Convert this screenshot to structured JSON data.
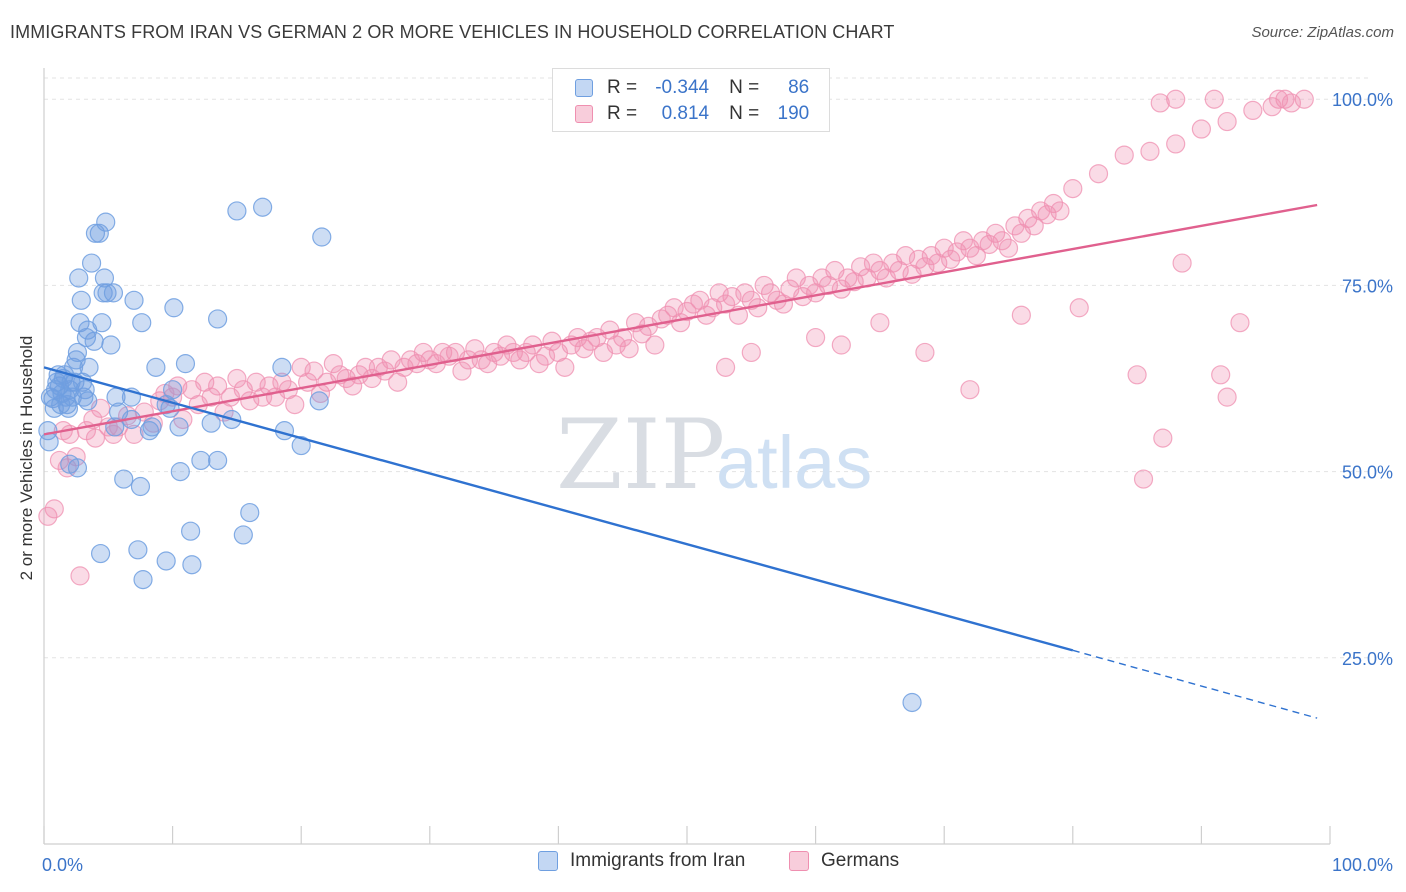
{
  "header": {
    "title": "IMMIGRANTS FROM IRAN VS GERMAN 2 OR MORE VEHICLES IN HOUSEHOLD CORRELATION CHART",
    "source": "Source: ZipAtlas.com"
  },
  "watermark": {
    "zip": "ZIP",
    "atlas": "atlas"
  },
  "legend": {
    "rows": [
      {
        "r_label": "R =",
        "r_value": "-0.344",
        "n_label": "N =",
        "n_value": "86"
      },
      {
        "r_label": "R =",
        "r_value": "0.814",
        "n_label": "N =",
        "n_value": "190"
      }
    ]
  },
  "chart_data": {
    "type": "scatter",
    "title": "IMMIGRANTS FROM IRAN VS GERMAN 2 OR MORE VEHICLES IN HOUSEHOLD CORRELATION CHART",
    "xlabel": "",
    "ylabel": "2 or more Vehicles in Household",
    "xlim": [
      0,
      100
    ],
    "ylim": [
      0,
      105
    ],
    "x_tick_labels": {
      "left": "0.0%",
      "right": "100.0%"
    },
    "y_ticks": [
      {
        "value": 25,
        "label": "25.0%"
      },
      {
        "value": 50,
        "label": "50.0%"
      },
      {
        "value": 75,
        "label": "75.0%"
      },
      {
        "value": 100,
        "label": "100.0%"
      }
    ],
    "grid": true,
    "legend_position": "top-center",
    "colors": {
      "iran": "#6f9fe0",
      "german": "#ef8fb0",
      "iran_line": "#2f72d0",
      "german_line": "#e0608e",
      "tick_label": "#3b74c9"
    },
    "series": [
      {
        "name": "Immigrants from Iran",
        "r": -0.344,
        "n": 86,
        "trend": {
          "x": [
            0,
            80
          ],
          "y": [
            64,
            26
          ]
        },
        "trend_dashed": {
          "x": [
            80,
            99
          ],
          "y": [
            26,
            16.9
          ]
        },
        "points": [
          [
            0.3,
            55.5
          ],
          [
            0.5,
            60
          ],
          [
            0.7,
            59.8
          ],
          [
            0.8,
            58.5
          ],
          [
            0.9,
            61
          ],
          [
            1.0,
            62
          ],
          [
            1.1,
            63
          ],
          [
            1.2,
            61.5
          ],
          [
            1.3,
            59
          ],
          [
            1.4,
            60.5
          ],
          [
            1.5,
            62.5
          ],
          [
            1.6,
            63
          ],
          [
            1.7,
            60
          ],
          [
            1.8,
            59
          ],
          [
            1.9,
            58.5
          ],
          [
            2.0,
            61
          ],
          [
            2.1,
            62
          ],
          [
            2.2,
            60
          ],
          [
            2.3,
            64
          ],
          [
            2.4,
            62
          ],
          [
            2.5,
            65
          ],
          [
            2.6,
            66
          ],
          [
            2.7,
            76
          ],
          [
            2.8,
            70
          ],
          [
            2.9,
            73
          ],
          [
            3.0,
            62
          ],
          [
            3.1,
            60
          ],
          [
            3.2,
            61
          ],
          [
            3.3,
            68
          ],
          [
            3.4,
            69
          ],
          [
            3.5,
            64
          ],
          [
            3.7,
            78
          ],
          [
            3.9,
            67.5
          ],
          [
            4.0,
            82
          ],
          [
            4.3,
            82
          ],
          [
            4.5,
            70
          ],
          [
            4.6,
            74
          ],
          [
            4.7,
            76
          ],
          [
            4.8,
            83.5
          ],
          [
            4.9,
            74
          ],
          [
            5.2,
            67
          ],
          [
            5.4,
            74
          ],
          [
            5.6,
            60
          ],
          [
            3.4,
            59.5
          ],
          [
            5.8,
            58
          ],
          [
            6.2,
            49
          ],
          [
            6.8,
            60
          ],
          [
            7.0,
            73
          ],
          [
            7.6,
            70
          ],
          [
            8.4,
            56
          ],
          [
            8.7,
            64
          ],
          [
            9.5,
            59
          ],
          [
            10.0,
            61
          ],
          [
            10.1,
            72
          ],
          [
            10.6,
            50
          ],
          [
            11.0,
            64.5
          ],
          [
            11.4,
            42
          ],
          [
            12.2,
            51.5
          ],
          [
            13.5,
            51.5
          ],
          [
            13.5,
            70.5
          ],
          [
            15.0,
            85
          ],
          [
            15.5,
            41.5
          ],
          [
            16.0,
            44.5
          ],
          [
            17.0,
            85.5
          ],
          [
            18.5,
            64
          ],
          [
            18.7,
            55.5
          ],
          [
            20.0,
            53.5
          ],
          [
            21.4,
            59.5
          ],
          [
            21.6,
            81.5
          ],
          [
            2.0,
            51
          ],
          [
            2.6,
            50.5
          ],
          [
            4.4,
            39
          ],
          [
            7.3,
            39.5
          ],
          [
            7.7,
            35.5
          ],
          [
            9.5,
            38
          ],
          [
            11.5,
            37.5
          ],
          [
            5.5,
            56
          ],
          [
            6.8,
            57
          ],
          [
            7.5,
            48
          ],
          [
            8.2,
            55.5
          ],
          [
            9.8,
            58.5
          ],
          [
            13.0,
            56.5
          ],
          [
            14.6,
            57
          ],
          [
            10.5,
            56
          ],
          [
            0.4,
            54
          ],
          [
            67.5,
            19
          ]
        ]
      },
      {
        "name": "Germans",
        "r": 0.814,
        "n": 190,
        "trend": {
          "x": [
            0,
            99
          ],
          "y": [
            55,
            85.8
          ]
        },
        "points": [
          [
            0.3,
            44
          ],
          [
            0.8,
            45
          ],
          [
            1.2,
            51.5
          ],
          [
            1.5,
            55.5
          ],
          [
            2.0,
            55
          ],
          [
            2.8,
            36
          ],
          [
            3.3,
            55.5
          ],
          [
            4.0,
            54.5
          ],
          [
            4.4,
            58.5
          ],
          [
            5.0,
            56
          ],
          [
            5.4,
            55
          ],
          [
            5.8,
            56
          ],
          [
            6.5,
            57.5
          ],
          [
            7.0,
            55
          ],
          [
            7.8,
            58
          ],
          [
            8.5,
            56.5
          ],
          [
            9.0,
            59.5
          ],
          [
            9.4,
            60.5
          ],
          [
            10.0,
            60
          ],
          [
            10.4,
            61.5
          ],
          [
            10.8,
            57
          ],
          [
            11.5,
            61
          ],
          [
            12.0,
            59
          ],
          [
            12.5,
            62
          ],
          [
            13.0,
            60
          ],
          [
            13.5,
            61.5
          ],
          [
            14.0,
            58
          ],
          [
            14.5,
            60
          ],
          [
            15.0,
            62.5
          ],
          [
            15.5,
            61
          ],
          [
            16.0,
            59.5
          ],
          [
            16.5,
            62
          ],
          [
            17.0,
            60
          ],
          [
            17.5,
            61.5
          ],
          [
            18.0,
            60
          ],
          [
            18.5,
            62
          ],
          [
            19.0,
            61
          ],
          [
            19.5,
            59
          ],
          [
            20.0,
            64
          ],
          [
            20.5,
            62
          ],
          [
            21.0,
            63.5
          ],
          [
            21.5,
            60.5
          ],
          [
            22.0,
            62
          ],
          [
            22.5,
            64.5
          ],
          [
            23.0,
            63
          ],
          [
            23.5,
            62.5
          ],
          [
            24.0,
            61.5
          ],
          [
            24.5,
            63
          ],
          [
            25.0,
            64
          ],
          [
            25.5,
            62.5
          ],
          [
            26.0,
            64
          ],
          [
            26.5,
            63.5
          ],
          [
            27.0,
            65
          ],
          [
            27.5,
            62
          ],
          [
            28.0,
            64
          ],
          [
            28.5,
            65
          ],
          [
            29.0,
            64.5
          ],
          [
            29.5,
            66
          ],
          [
            30.0,
            65
          ],
          [
            30.5,
            64.5
          ],
          [
            31.0,
            66
          ],
          [
            31.5,
            65.5
          ],
          [
            32.0,
            66
          ],
          [
            32.5,
            63.5
          ],
          [
            33.0,
            65
          ],
          [
            33.5,
            66.5
          ],
          [
            34.0,
            65
          ],
          [
            34.5,
            64.5
          ],
          [
            35.0,
            66
          ],
          [
            35.5,
            65.5
          ],
          [
            36.0,
            67
          ],
          [
            36.5,
            66
          ],
          [
            37.0,
            65
          ],
          [
            37.5,
            66
          ],
          [
            38.0,
            67
          ],
          [
            38.5,
            64.5
          ],
          [
            39.0,
            65.5
          ],
          [
            39.5,
            67.5
          ],
          [
            40.0,
            66
          ],
          [
            40.5,
            64
          ],
          [
            41.0,
            67
          ],
          [
            41.5,
            68
          ],
          [
            42.0,
            66.5
          ],
          [
            42.5,
            67.5
          ],
          [
            43.0,
            68
          ],
          [
            43.5,
            66
          ],
          [
            44.0,
            69
          ],
          [
            44.5,
            67
          ],
          [
            45.0,
            68
          ],
          [
            45.5,
            66.5
          ],
          [
            46.0,
            70
          ],
          [
            46.5,
            68.5
          ],
          [
            47.0,
            69.5
          ],
          [
            47.5,
            67
          ],
          [
            48.0,
            70.5
          ],
          [
            48.5,
            71
          ],
          [
            49.0,
            72
          ],
          [
            49.5,
            70
          ],
          [
            50.0,
            71.5
          ],
          [
            50.5,
            72.5
          ],
          [
            51.0,
            73
          ],
          [
            51.5,
            71
          ],
          [
            52.0,
            72
          ],
          [
            52.5,
            74
          ],
          [
            53.0,
            72.5
          ],
          [
            53.5,
            73.5
          ],
          [
            54.0,
            71
          ],
          [
            54.5,
            74
          ],
          [
            55.0,
            73
          ],
          [
            55.5,
            72
          ],
          [
            56.0,
            75
          ],
          [
            56.5,
            74
          ],
          [
            57.0,
            73
          ],
          [
            57.5,
            72.5
          ],
          [
            58.0,
            74.5
          ],
          [
            58.5,
            76
          ],
          [
            59.0,
            73.5
          ],
          [
            59.5,
            75
          ],
          [
            60.0,
            74
          ],
          [
            60.5,
            76
          ],
          [
            61.0,
            75
          ],
          [
            61.5,
            77
          ],
          [
            62.0,
            74.5
          ],
          [
            62.5,
            76
          ],
          [
            63.0,
            75.5
          ],
          [
            63.5,
            77.5
          ],
          [
            64.0,
            76
          ],
          [
            64.5,
            78
          ],
          [
            65.0,
            77
          ],
          [
            65.5,
            76
          ],
          [
            66.0,
            78
          ],
          [
            66.5,
            77
          ],
          [
            67.0,
            79
          ],
          [
            67.5,
            76.5
          ],
          [
            68.0,
            78.5
          ],
          [
            68.5,
            77.5
          ],
          [
            69.0,
            79
          ],
          [
            69.5,
            78
          ],
          [
            70.0,
            80
          ],
          [
            70.5,
            78.5
          ],
          [
            71.0,
            79.5
          ],
          [
            71.5,
            81
          ],
          [
            72.0,
            80
          ],
          [
            72.5,
            79
          ],
          [
            73.0,
            81
          ],
          [
            73.5,
            80.5
          ],
          [
            74.0,
            82
          ],
          [
            74.5,
            81
          ],
          [
            75.0,
            80
          ],
          [
            75.5,
            83
          ],
          [
            76.0,
            82
          ],
          [
            76.5,
            84
          ],
          [
            77.0,
            83
          ],
          [
            77.5,
            85
          ],
          [
            78.0,
            84.5
          ],
          [
            78.5,
            86
          ],
          [
            79.0,
            85
          ],
          [
            80.0,
            88
          ],
          [
            82.0,
            90
          ],
          [
            84.0,
            92.5
          ],
          [
            86.0,
            93
          ],
          [
            88.0,
            94
          ],
          [
            90.0,
            96
          ],
          [
            92.0,
            97
          ],
          [
            94.0,
            98.5
          ],
          [
            95.5,
            99
          ],
          [
            97.0,
            99.5
          ],
          [
            98.0,
            100
          ],
          [
            86.8,
            99.5
          ],
          [
            88.0,
            100
          ],
          [
            91.0,
            100
          ],
          [
            96.0,
            100
          ],
          [
            96.5,
            100
          ],
          [
            53.0,
            64
          ],
          [
            55.0,
            66
          ],
          [
            60.0,
            68
          ],
          [
            62.0,
            67
          ],
          [
            65.0,
            70
          ],
          [
            68.5,
            66
          ],
          [
            72.0,
            61
          ],
          [
            76.0,
            71
          ],
          [
            80.5,
            72
          ],
          [
            85.0,
            63
          ],
          [
            87.0,
            54.5
          ],
          [
            88.5,
            78
          ],
          [
            91.5,
            63
          ],
          [
            92.0,
            60
          ],
          [
            93.0,
            70
          ],
          [
            85.5,
            49
          ],
          [
            2.5,
            52
          ],
          [
            1.8,
            50.5
          ],
          [
            3.8,
            57
          ]
        ]
      }
    ]
  },
  "bottom_legend": [
    {
      "label": "Immigrants from Iran"
    },
    {
      "label": "Germans"
    }
  ]
}
